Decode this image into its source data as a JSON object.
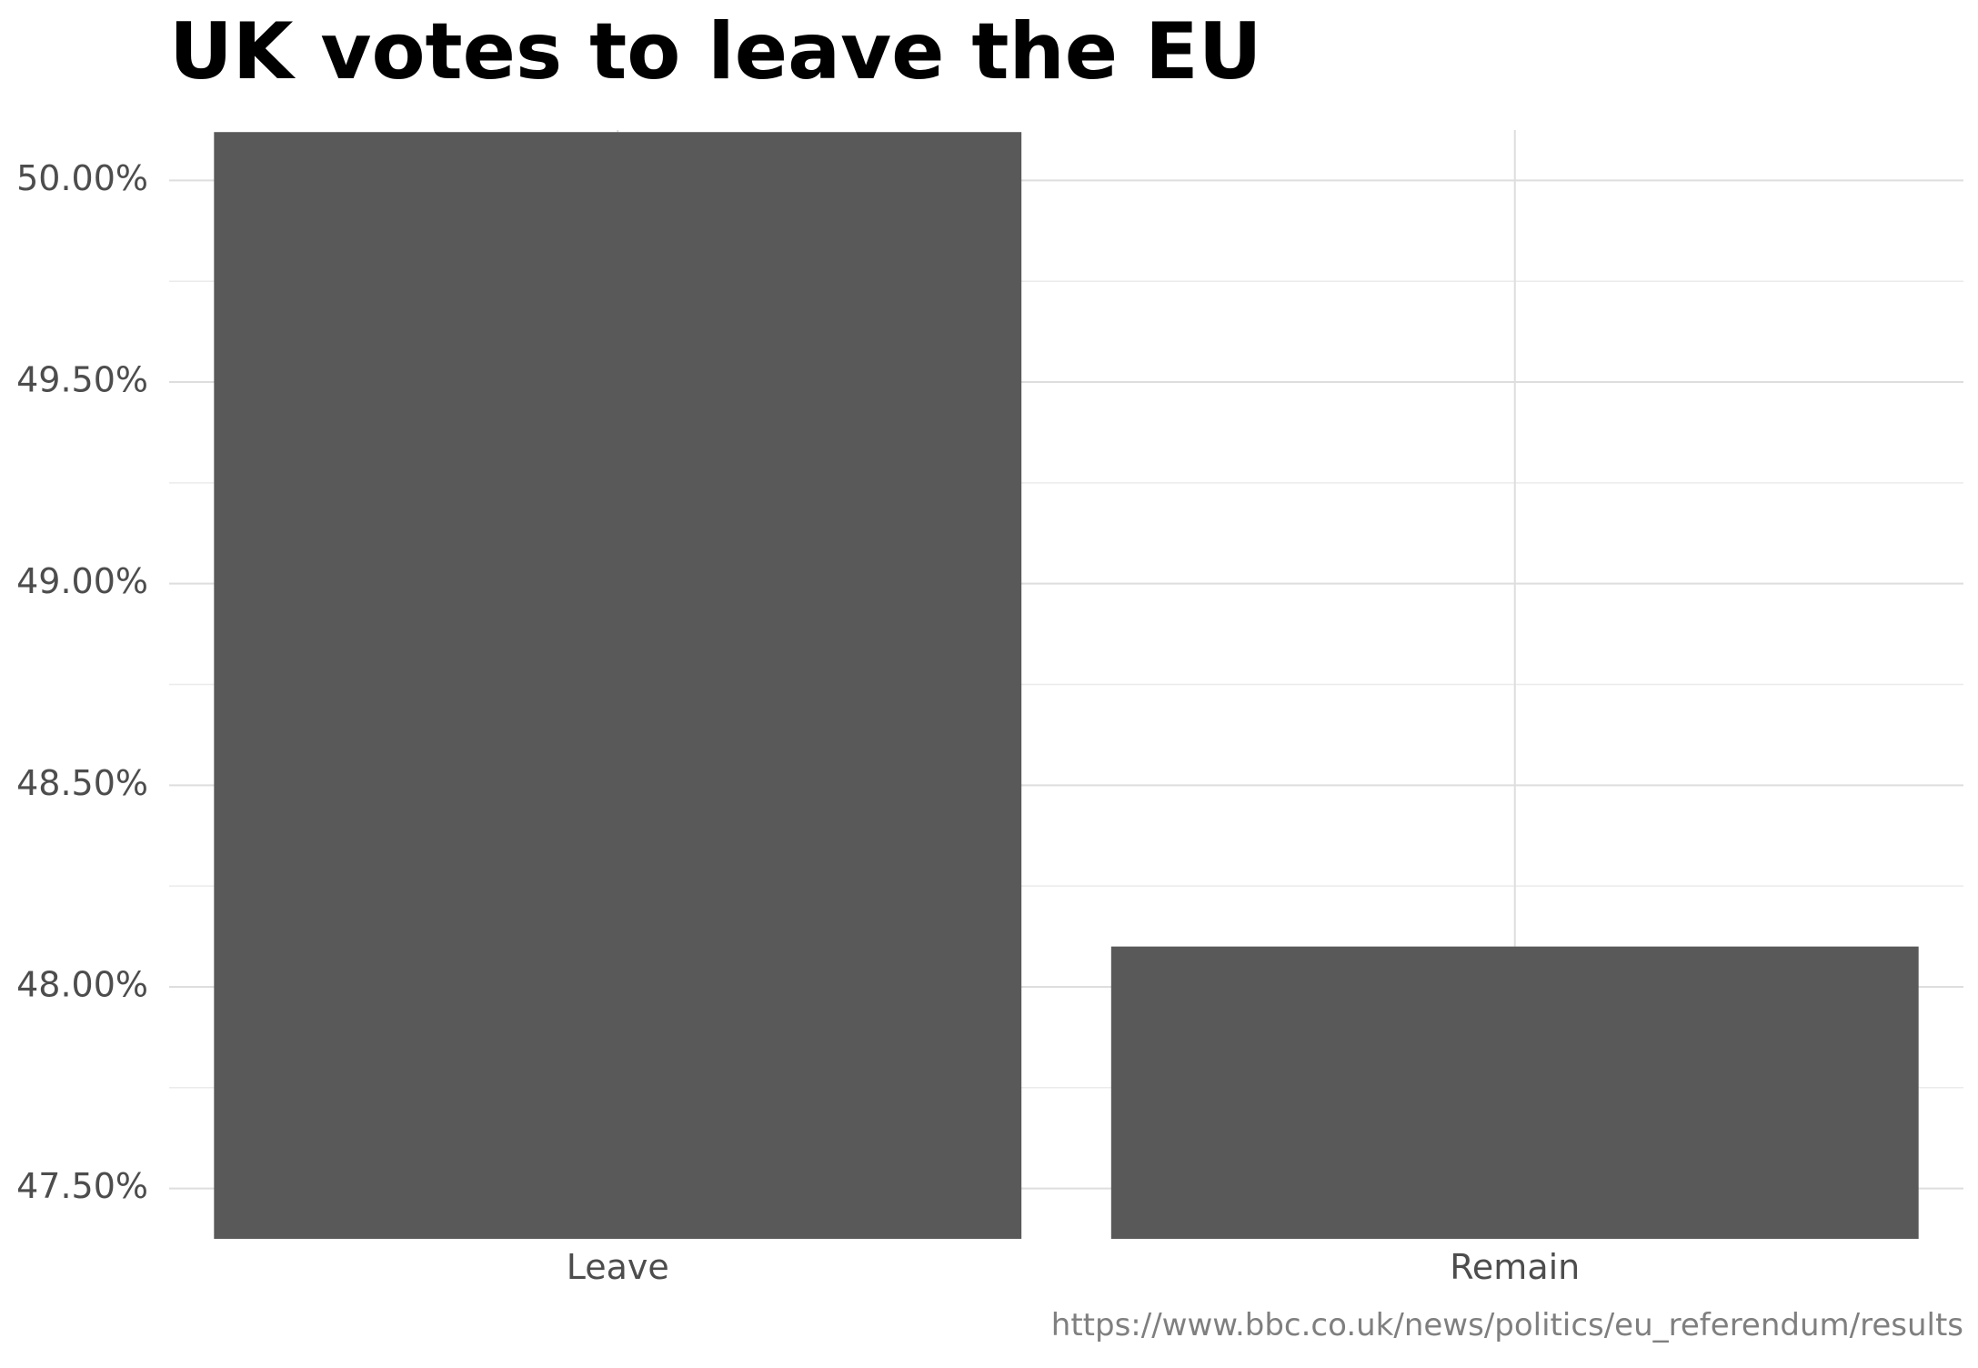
{
  "chart_data": {
    "type": "bar",
    "title": "UK votes to leave the EU",
    "xlabel": "",
    "ylabel": "",
    "categories": [
      "Leave",
      "Remain"
    ],
    "values": [
      50.12,
      48.1
    ],
    "ylim": [
      47.375,
      50.125
    ],
    "yticks": [
      47.5,
      48.0,
      48.5,
      49.0,
      49.5,
      50.0
    ],
    "ytick_labels": [
      "47.50%",
      "48.00%",
      "48.50%",
      "49.00%",
      "49.50%",
      "50.00%"
    ],
    "grid": true,
    "legend": "none",
    "caption": "https://www.bbc.co.uk/news/politics/eu_referendum/results",
    "colors": {
      "bar": "#595959",
      "grid_major": "#dedede",
      "grid_minor": "#ebebeb"
    }
  }
}
